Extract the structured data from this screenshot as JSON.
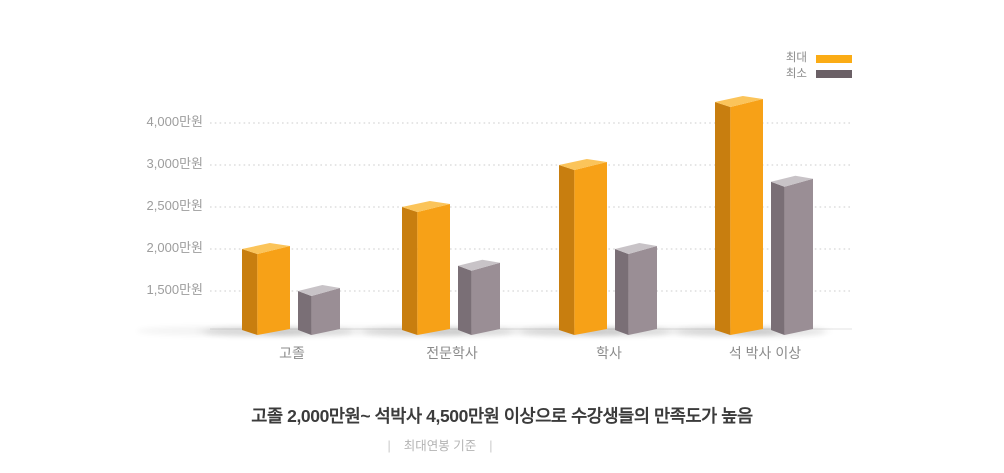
{
  "page": {
    "background": "#ffffff"
  },
  "legend": {
    "max_label": "최대",
    "min_label": "최소",
    "max_color": "#FBAC15",
    "min_color": "#6B6066"
  },
  "chart_data": {
    "type": "bar",
    "title": "고졸 2,000만원~ 석박사 4,500만원 이상으로 수강생들의 만족도가 높음",
    "caption": "최대연봉 기준",
    "categories": [
      "고졸",
      "전문학사",
      "학사",
      "석 박사 이상"
    ],
    "series": [
      {
        "name": "최대",
        "values": [
          2000,
          2500,
          3000,
          4500
        ],
        "color_front": "#F7A117",
        "color_side": "#C87E0F",
        "color_top": "#FBC45A"
      },
      {
        "name": "최소",
        "values": [
          1500,
          1800,
          2000,
          2800
        ],
        "color_front": "#9A8E95",
        "color_side": "#7A6F76",
        "color_top": "#C8C3C7"
      }
    ],
    "y_ticks": [
      {
        "label": "4,000만원",
        "value": 4000
      },
      {
        "label": "3,000만원",
        "value": 3000
      },
      {
        "label": "2,500만원",
        "value": 2500
      },
      {
        "label": "2,000만원",
        "value": 2000
      },
      {
        "label": "1,500만원",
        "value": 1500
      }
    ],
    "unit": "만원",
    "grid": "horizontal-dotted",
    "legend_position": "top-right",
    "y_scale_note": "non-linear: tick labels equally spaced",
    "bar_style": "3d-box",
    "grid_color": "#cdcdcd",
    "baseline_color": "#e3e3e3"
  },
  "footer": {
    "caption_bar": "|"
  }
}
